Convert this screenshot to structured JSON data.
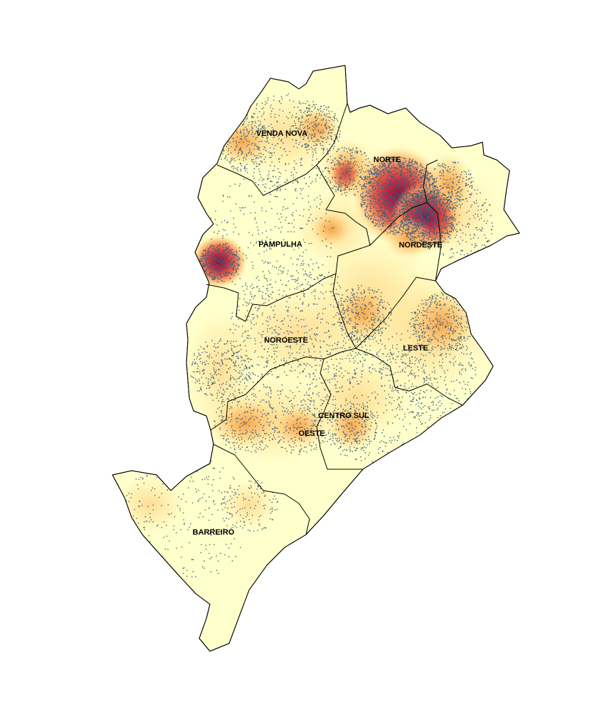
{
  "map": {
    "regions": [
      {
        "id": "venda-nova",
        "name": "VENDA NOVA"
      },
      {
        "id": "norte",
        "name": "NORTE"
      },
      {
        "id": "pampulha",
        "name": "PAMPULHA"
      },
      {
        "id": "nordeste",
        "name": "NORDESTE"
      },
      {
        "id": "noroeste",
        "name": "NOROESTE"
      },
      {
        "id": "leste",
        "name": "LESTE"
      },
      {
        "id": "centro-sul",
        "name": "CENTRO SUL"
      },
      {
        "id": "oeste",
        "name": "OESTE"
      },
      {
        "id": "barreiro",
        "name": "BARREIRO"
      }
    ],
    "colors": {
      "base": "#ffffcc",
      "low": "#fee391",
      "mid": "#fdae61",
      "high": "#e34a33",
      "peak": "#8b0f3a",
      "points": "#3b5f7f",
      "boundary": "#000000"
    }
  }
}
